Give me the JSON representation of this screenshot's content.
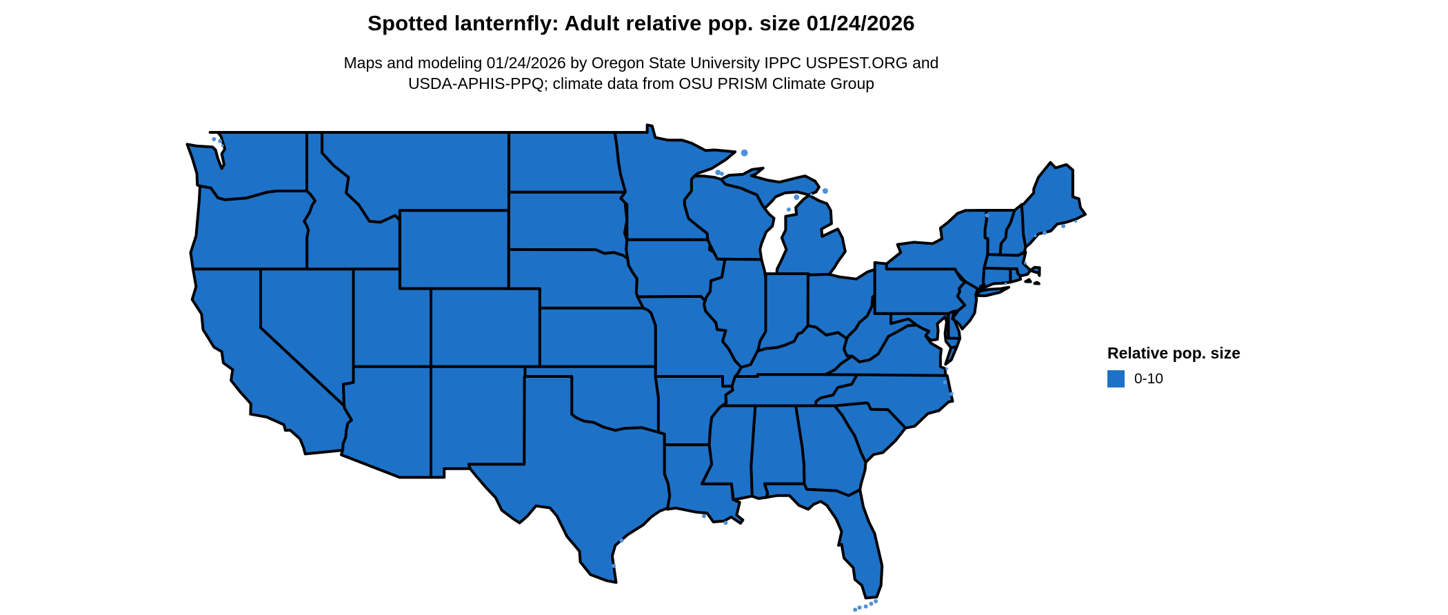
{
  "title": "Spotted lanternfly: Adult relative pop. size 01/24/2026",
  "subtitle_line1": "Maps and modeling 01/24/2026 by Oregon State University IPPC USPEST.ORG and",
  "subtitle_line2": "USDA-APHIS-PPQ; climate data from OSU PRISM Climate Group",
  "legend": {
    "title": "Relative pop. size",
    "items": [
      {
        "label": "0-10",
        "color": "#1d72c8"
      }
    ]
  },
  "map": {
    "fill_color": "#1d72c8",
    "islet_color": "#4e92d8",
    "border_color": "#000000",
    "background_color": "#ffffff"
  }
}
